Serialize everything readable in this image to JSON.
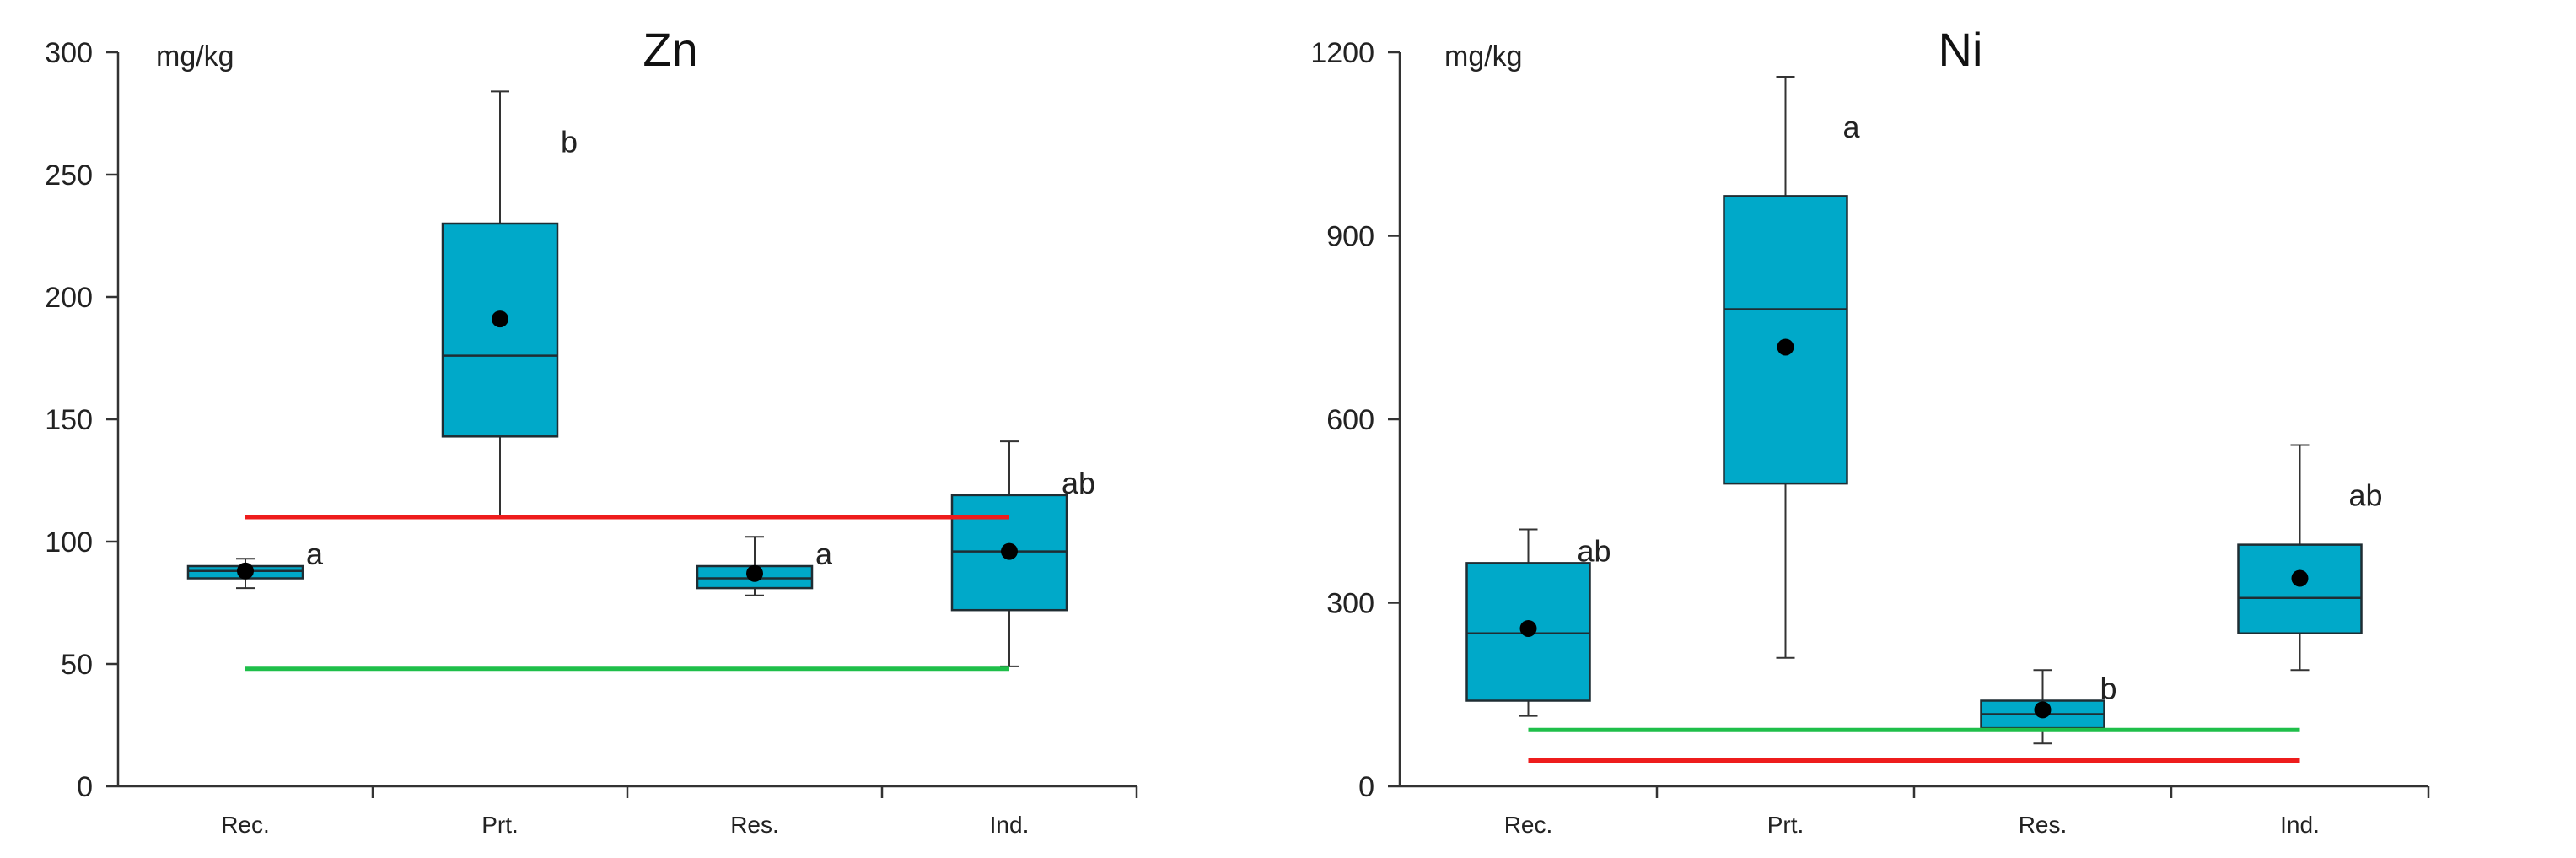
{
  "chart_data": [
    {
      "type": "box",
      "title": "Zn",
      "unit_label": "mg/kg",
      "categories": [
        "Rec.",
        "Prt.",
        "Res.",
        "Ind."
      ],
      "ylim": [
        0,
        300
      ],
      "yticks": [
        0,
        50,
        100,
        150,
        200,
        250,
        300
      ],
      "boxes": [
        {
          "category": "Rec.",
          "min": 81,
          "q1": 85,
          "median": 88,
          "q3": 90,
          "max": 93,
          "mean": 88,
          "letter": "a"
        },
        {
          "category": "Prt.",
          "min": 110,
          "q1": 143,
          "median": 176,
          "q3": 230,
          "max": 284,
          "mean": 191,
          "letter": "b"
        },
        {
          "category": "Res.",
          "min": 78,
          "q1": 81,
          "median": 85,
          "q3": 90,
          "max": 102,
          "mean": 87,
          "letter": "a"
        },
        {
          "category": "Ind.",
          "min": 49,
          "q1": 72,
          "median": 96,
          "q3": 119,
          "max": 141,
          "mean": 96,
          "letter": "ab"
        }
      ],
      "reference_lines": [
        {
          "color": "#ee1c1c",
          "value": 110,
          "from": "Rec.",
          "to": "Ind."
        },
        {
          "color": "#1fbf4a",
          "value": 48,
          "from": "Rec.",
          "to": "Ind."
        }
      ]
    },
    {
      "type": "box",
      "title": "Ni",
      "unit_label": "mg/kg",
      "categories": [
        "Rec.",
        "Prt.",
        "Res.",
        "Ind."
      ],
      "ylim": [
        0,
        1200
      ],
      "yticks": [
        0,
        300,
        600,
        900,
        1200
      ],
      "boxes": [
        {
          "category": "Rec.",
          "min": 115,
          "q1": 140,
          "median": 250,
          "q3": 365,
          "max": 420,
          "mean": 258,
          "letter": "ab"
        },
        {
          "category": "Prt.",
          "min": 210,
          "q1": 495,
          "median": 780,
          "q3": 965,
          "max": 1160,
          "mean": 718,
          "letter": "a"
        },
        {
          "category": "Res.",
          "min": 70,
          "q1": 95,
          "median": 118,
          "q3": 140,
          "max": 190,
          "mean": 125,
          "letter": "b"
        },
        {
          "category": "Ind.",
          "min": 190,
          "q1": 250,
          "median": 308,
          "q3": 395,
          "max": 558,
          "mean": 340,
          "letter": "ab"
        }
      ],
      "reference_lines": [
        {
          "color": "#1fbf4a",
          "value": 92,
          "from": "Rec.",
          "to": "Ind."
        },
        {
          "color": "#ee1c1c",
          "value": 42,
          "from": "Rec.",
          "to": "Ind."
        }
      ]
    }
  ],
  "colors": {
    "box_fill": "#00a9c9",
    "axis": "#333333",
    "mean_marker": "#000000"
  }
}
